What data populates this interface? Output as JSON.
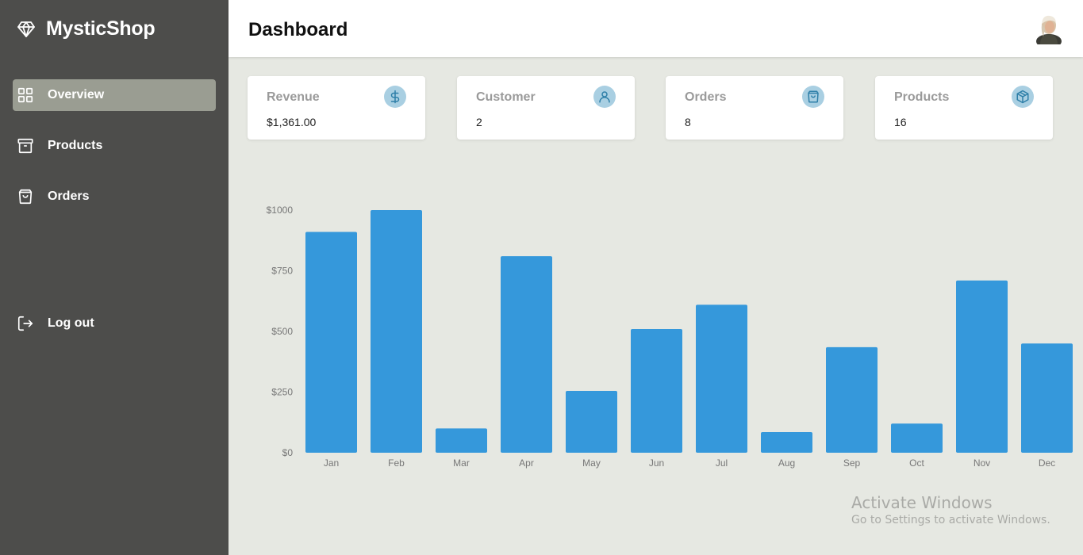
{
  "app": {
    "brand": "MysticShop",
    "brand_icon": "diamond-icon"
  },
  "sidebar": {
    "items": [
      {
        "label": "Overview",
        "icon": "grid-icon",
        "active": true
      },
      {
        "label": "Products",
        "icon": "archive-box-icon",
        "active": false
      },
      {
        "label": "Orders",
        "icon": "shopping-bag-icon",
        "active": false
      }
    ],
    "logout": {
      "label": "Log out",
      "icon": "logout-icon"
    }
  },
  "header": {
    "title": "Dashboard",
    "avatar": "user-avatar"
  },
  "stats": [
    {
      "label": "Revenue",
      "value": "$1,361.00",
      "icon": "dollar-icon"
    },
    {
      "label": "Customer",
      "value": "2",
      "icon": "user-icon"
    },
    {
      "label": "Orders",
      "value": "8",
      "icon": "shopping-bag-icon"
    },
    {
      "label": "Products",
      "value": "16",
      "icon": "package-icon"
    }
  ],
  "chart_data": {
    "type": "bar",
    "categories": [
      "Jan",
      "Feb",
      "Mar",
      "Apr",
      "May",
      "Jun",
      "Jul",
      "Aug",
      "Sep",
      "Oct",
      "Nov",
      "Dec"
    ],
    "values": [
      910,
      1000,
      100,
      810,
      255,
      510,
      610,
      85,
      435,
      120,
      710,
      450
    ],
    "ylim": [
      0,
      1000
    ],
    "yticks": [
      0,
      250,
      500,
      750,
      1000
    ],
    "ytick_labels": [
      "$0",
      "$250",
      "$500",
      "$750",
      "$1000"
    ],
    "bar_color": "#3598db",
    "grid": false,
    "title": "",
    "xlabel": "",
    "ylabel": ""
  },
  "watermark": {
    "title": "Activate Windows",
    "subtitle": "Go to Settings to activate Windows."
  },
  "colors": {
    "sidebar": "#4d4d4b",
    "active_item": "#9a9d92",
    "background": "#e6e8e2",
    "icon_circle": "#a9cfe2",
    "icon_stroke": "#2e7fa8"
  }
}
